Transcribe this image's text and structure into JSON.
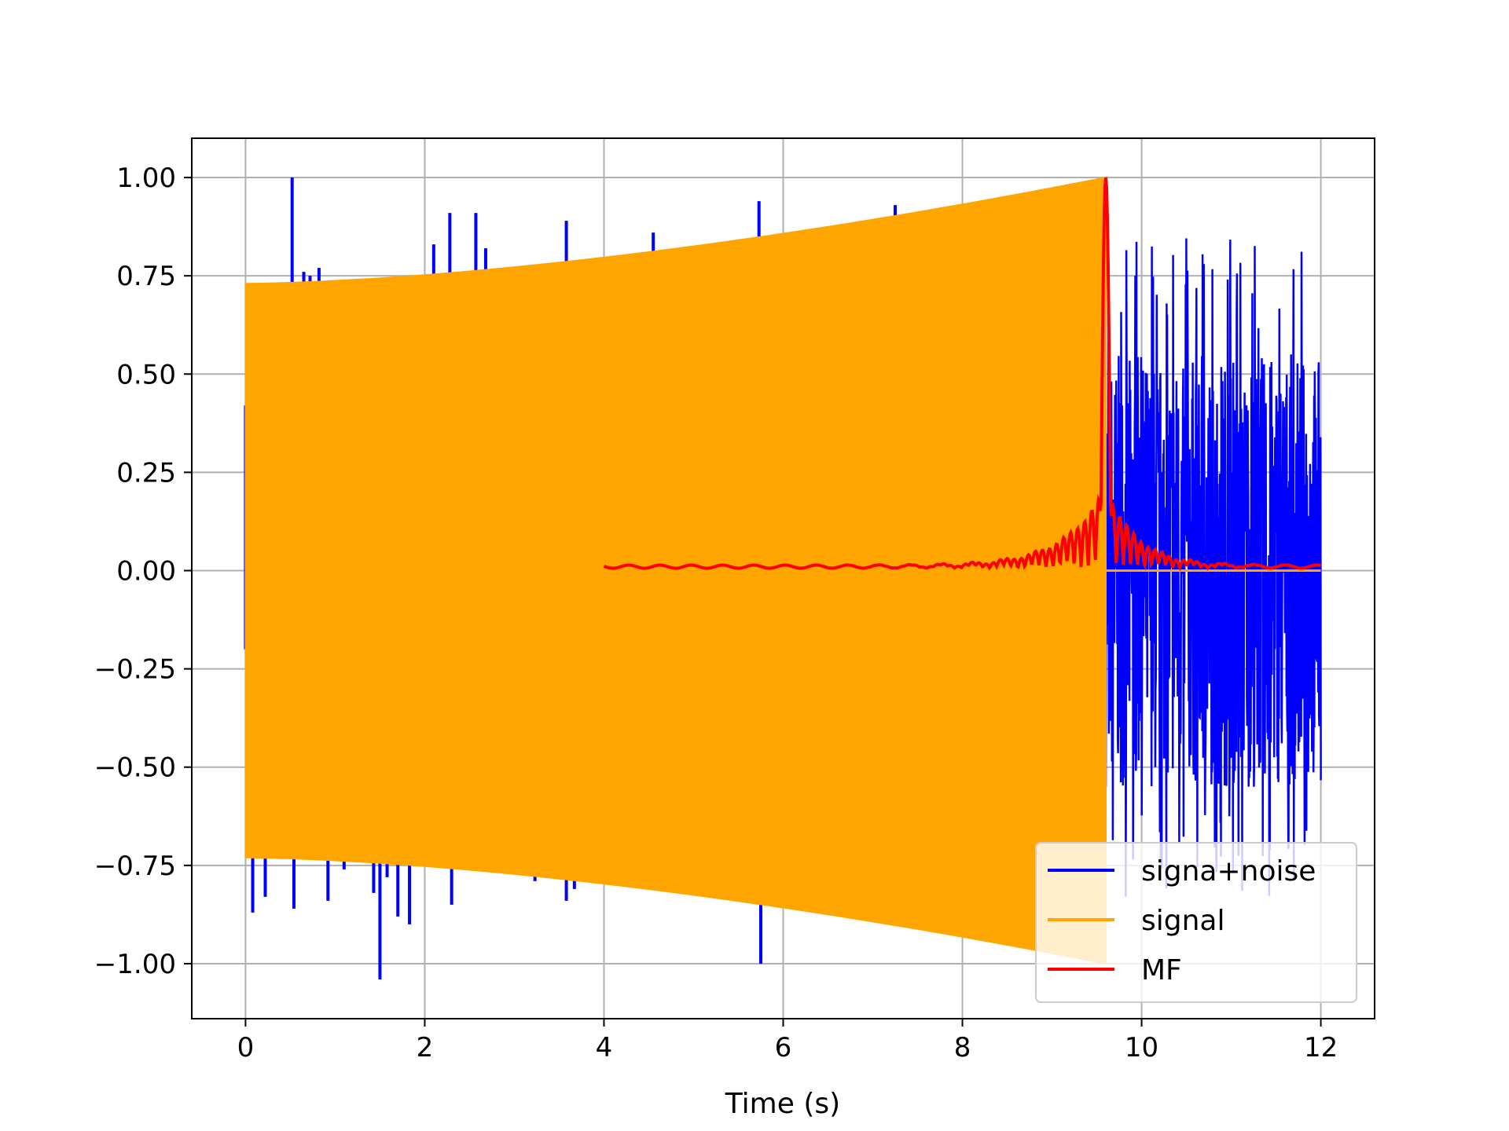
{
  "chart_data": {
    "type": "line",
    "title": "",
    "xlabel": "Time (s)",
    "ylabel": "",
    "xlim": [
      -0.6,
      12.6
    ],
    "ylim": [
      -1.14,
      1.1
    ],
    "xticks": [
      0,
      2,
      4,
      6,
      8,
      10,
      12
    ],
    "xtick_labels": [
      "0",
      "2",
      "4",
      "6",
      "8",
      "10",
      "12"
    ],
    "yticks": [
      1.0,
      0.75,
      0.5,
      0.25,
      0.0,
      -0.25,
      -0.5,
      -0.75,
      -1.0
    ],
    "ytick_labels": [
      "1.00",
      "0.75",
      "0.50",
      "0.25",
      "0.00",
      "−0.25",
      "−0.50",
      "−0.75",
      "−1.00"
    ],
    "grid": true,
    "legend_position": "lower-right",
    "series": [
      {
        "name": "signa+noise",
        "color": "#0000ff",
        "segment": "0 to 12 s",
        "noise_region": [
          9.6,
          12.0
        ],
        "noise_amplitude": 0.55,
        "spikes": [
          {
            "x": 0.0,
            "y": 0.42
          },
          {
            "x": 0.0,
            "y": -0.2
          },
          {
            "x": 0.08,
            "y": -0.87
          },
          {
            "x": 0.22,
            "y": -0.83
          },
          {
            "x": 0.52,
            "y": 1.0
          },
          {
            "x": 0.54,
            "y": -0.86
          },
          {
            "x": 0.65,
            "y": 0.76
          },
          {
            "x": 0.72,
            "y": 0.75
          },
          {
            "x": 0.82,
            "y": 0.77
          },
          {
            "x": 0.92,
            "y": -0.84
          },
          {
            "x": 1.1,
            "y": -0.76
          },
          {
            "x": 1.43,
            "y": -0.82
          },
          {
            "x": 1.5,
            "y": -1.04
          },
          {
            "x": 1.58,
            "y": -0.78
          },
          {
            "x": 1.7,
            "y": -0.88
          },
          {
            "x": 1.83,
            "y": -0.9
          },
          {
            "x": 2.1,
            "y": 0.83
          },
          {
            "x": 2.28,
            "y": 0.91
          },
          {
            "x": 2.3,
            "y": -0.85
          },
          {
            "x": 2.57,
            "y": 0.91
          },
          {
            "x": 2.68,
            "y": 0.82
          },
          {
            "x": 3.23,
            "y": -0.79
          },
          {
            "x": 3.58,
            "y": 0.89
          },
          {
            "x": 3.58,
            "y": -0.84
          },
          {
            "x": 3.67,
            "y": -0.81
          },
          {
            "x": 4.55,
            "y": 0.86
          },
          {
            "x": 5.73,
            "y": 0.94
          },
          {
            "x": 5.75,
            "y": -1.0
          },
          {
            "x": 7.25,
            "y": 0.93
          }
        ]
      },
      {
        "name": "signal",
        "color": "#ffa500",
        "start": 0.0,
        "end": 9.6,
        "envelope_start": 0.73,
        "envelope_end": 1.0
      },
      {
        "name": "MF",
        "color": "#ff0000",
        "start": 4.0,
        "end": 12.0,
        "peak_x": 9.6,
        "peak_y": 1.0,
        "baseline": 0.01
      }
    ]
  }
}
